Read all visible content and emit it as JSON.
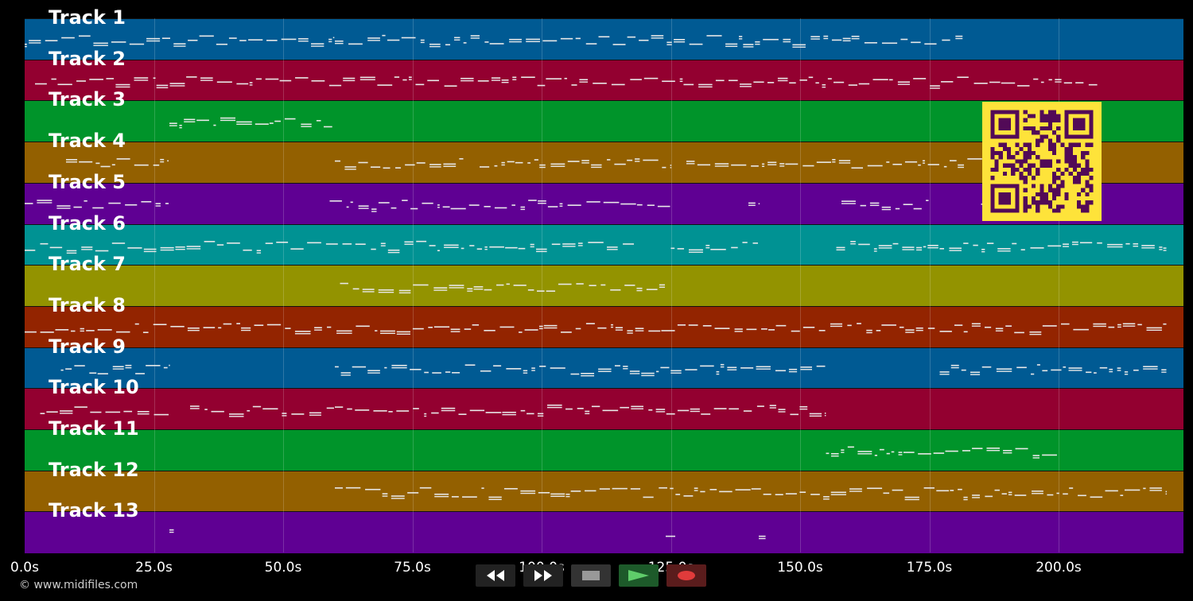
{
  "tracks": [
    {
      "label": "Track 1",
      "color": "#005a93"
    },
    {
      "label": "Track 2",
      "color": "#930030"
    },
    {
      "label": "Track 3",
      "color": "#00942a"
    },
    {
      "label": "Track 4",
      "color": "#936000"
    },
    {
      "label": "Track 5",
      "color": "#5f0093"
    },
    {
      "label": "Track 6",
      "color": "#009293"
    },
    {
      "label": "Track 7",
      "color": "#939300"
    },
    {
      "label": "Track 8",
      "color": "#932400"
    },
    {
      "label": "Track 9",
      "color": "#005a93"
    },
    {
      "label": "Track 10",
      "color": "#930030"
    },
    {
      "label": "Track 11",
      "color": "#00942a"
    },
    {
      "label": "Track 12",
      "color": "#936000"
    },
    {
      "label": "Track 13",
      "color": "#5f0093"
    }
  ],
  "time_axis": {
    "ticks": [
      "0.0s",
      "25.0s",
      "50.0s",
      "75.0s",
      "100.0s",
      "125.0s",
      "150.0s",
      "175.0s",
      "200.0s"
    ],
    "max_seconds": 225
  },
  "note_spans": [
    [
      [
        0,
        60
      ],
      [
        60,
        182
      ]
    ],
    [
      [
        2,
        208
      ]
    ],
    [
      [
        28,
        60
      ]
    ],
    [
      [
        8,
        28
      ],
      [
        60,
        85
      ],
      [
        88,
        125
      ],
      [
        128,
        205
      ]
    ],
    [
      [
        0,
        28
      ],
      [
        59,
        125
      ],
      [
        140,
        142
      ],
      [
        158,
        175
      ],
      [
        185,
        190
      ]
    ],
    [
      [
        0,
        118
      ],
      [
        125,
        142
      ],
      [
        157,
        221
      ]
    ],
    [
      [
        61,
        124
      ]
    ],
    [
      [
        0,
        221
      ]
    ],
    [
      [
        7,
        28
      ],
      [
        60,
        155
      ],
      [
        177,
        221
      ]
    ],
    [
      [
        3,
        28
      ],
      [
        32,
        60
      ],
      [
        60,
        155
      ]
    ],
    [
      [
        155,
        200
      ]
    ],
    [
      [
        60,
        221
      ]
    ],
    [
      [
        28,
        29
      ],
      [
        124,
        126
      ],
      [
        142,
        144
      ]
    ]
  ],
  "copyright": "© www.midifiles.com",
  "transport": {
    "rewind_icon": "rewind-icon",
    "fast_forward_icon": "fast-forward-icon",
    "stop_icon": "stop-icon",
    "play_icon": "play-icon",
    "record_icon": "record-icon"
  },
  "colors": {
    "background": "#000000",
    "qr_foreground": "#520a57",
    "qr_background": "#fee33a"
  }
}
